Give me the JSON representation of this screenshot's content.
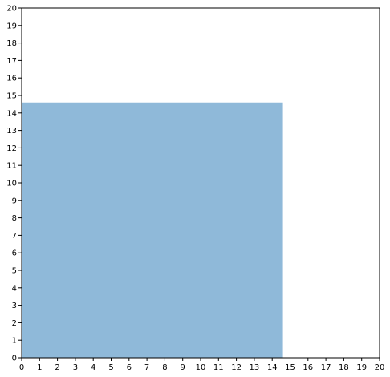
{
  "chart_data": {
    "type": "area",
    "title": "",
    "xlabel": "",
    "ylabel": "",
    "xlim": [
      0,
      20
    ],
    "ylim": [
      0,
      20
    ],
    "grid": false,
    "x_ticks": [
      "0",
      "1",
      "2",
      "3",
      "4",
      "5",
      "6",
      "7",
      "8",
      "9",
      "10",
      "11",
      "12",
      "13",
      "14",
      "15",
      "16",
      "17",
      "18",
      "19",
      "20"
    ],
    "y_ticks": [
      "0",
      "1",
      "2",
      "3",
      "4",
      "5",
      "6",
      "7",
      "8",
      "9",
      "10",
      "11",
      "12",
      "13",
      "14",
      "15",
      "16",
      "17",
      "18",
      "19",
      "20"
    ],
    "series": [
      {
        "x": [
          0,
          14.6
        ],
        "y": [
          14.6,
          14.6
        ],
        "baseline": 0,
        "color": "#8fb9d9"
      }
    ]
  }
}
